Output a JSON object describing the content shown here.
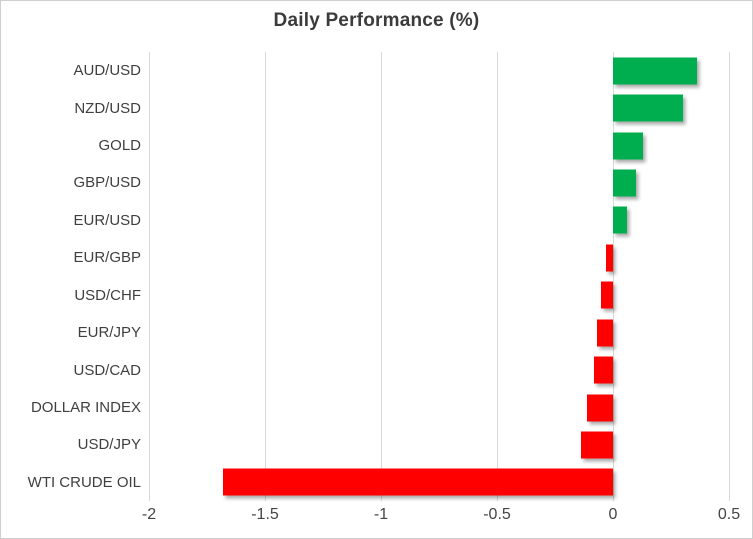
{
  "title": "Daily Performance (%)",
  "chart_data": {
    "type": "bar",
    "orientation": "horizontal",
    "title": "Daily Performance (%)",
    "xlabel": "",
    "ylabel": "",
    "categories": [
      "AUD/USD",
      "NZD/USD",
      "GOLD",
      "GBP/USD",
      "EUR/USD",
      "EUR/GBP",
      "USD/CHF",
      "EUR/JPY",
      "USD/CAD",
      "DOLLAR INDEX",
      "USD/JPY",
      "WTI CRUDE OIL"
    ],
    "values": [
      0.36,
      0.3,
      0.13,
      0.1,
      0.06,
      -0.03,
      -0.05,
      -0.07,
      -0.08,
      -0.11,
      -0.14,
      -1.68
    ],
    "xlim": [
      -2,
      0.5
    ],
    "xticks": [
      -2,
      -1.5,
      -1,
      -0.5,
      0,
      0.5
    ],
    "xtick_labels": [
      "-2",
      "-1.5",
      "-1",
      "-0.5",
      "0",
      "0.5"
    ],
    "grid": true,
    "legend": false,
    "colors": {
      "positive": "#00AE50",
      "negative": "#FF0000",
      "gridline": "#d9d9d9",
      "text": "#3f3f3f"
    }
  }
}
